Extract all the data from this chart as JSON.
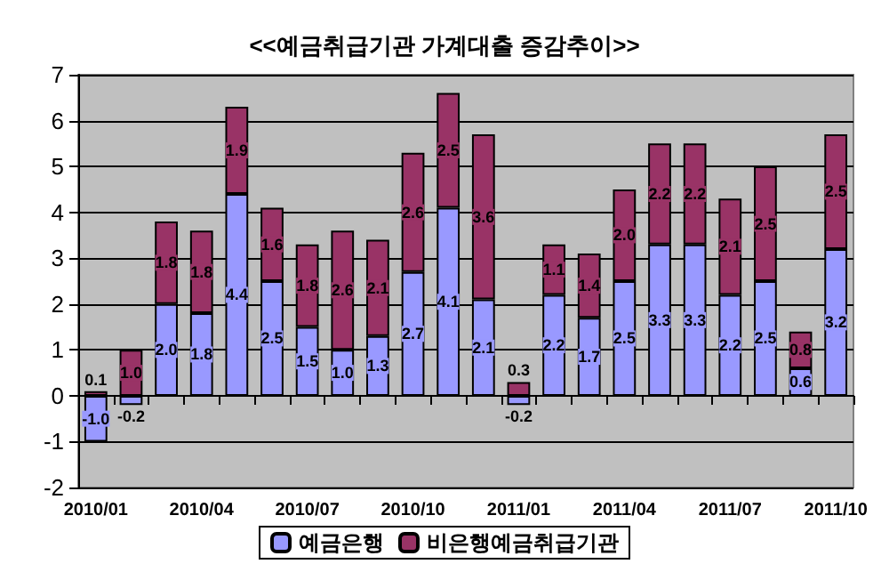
{
  "chart_data": {
    "type": "bar",
    "title": "<<예금취급기관 가계대출 증감추이>>",
    "stacked": true,
    "grid": "y",
    "legend": "bottom",
    "categories": [
      "2010/01",
      null,
      null,
      "2010/04",
      null,
      null,
      "2010/07",
      null,
      null,
      "2010/10",
      null,
      null,
      "2011/01",
      null,
      null,
      "2011/04",
      null,
      null,
      "2011/07",
      null,
      null,
      "2011/10"
    ],
    "series": [
      {
        "name": "예금은행",
        "color": "#9999ff",
        "values": [
          -1.0,
          -0.2,
          2.0,
          1.8,
          4.4,
          2.5,
          1.5,
          1.0,
          1.3,
          2.7,
          4.1,
          2.1,
          -0.2,
          2.2,
          1.7,
          2.5,
          3.3,
          3.3,
          2.2,
          2.5,
          0.6,
          3.2
        ],
        "value_labels": [
          "-1.0",
          "-0.2",
          "2.0",
          "1.8",
          "4.4",
          "2.5",
          "1.5",
          "1.0",
          "1.3",
          "2.7",
          "4.1",
          "2.1",
          "-0.2",
          "2.2",
          "1.7",
          "2.5",
          "3.3",
          "3.3",
          "2.2",
          "2.5",
          "0.6",
          "3.2"
        ]
      },
      {
        "name": "비은행예금취급기관",
        "color": "#993366",
        "values": [
          0.1,
          1.0,
          1.8,
          1.8,
          1.9,
          1.6,
          1.8,
          2.6,
          2.1,
          2.6,
          2.5,
          3.6,
          0.3,
          1.1,
          1.4,
          2.0,
          2.2,
          2.2,
          2.1,
          2.5,
          0.8,
          2.5
        ],
        "value_labels": [
          "0.1",
          "1.0",
          "1.8",
          "1.8",
          "1.9",
          "1.6",
          "1.8",
          "2.6",
          "2.1",
          "2.6",
          "2.5",
          "3.6",
          "0.3",
          "1.1",
          "1.4",
          "2.0",
          "2.2",
          "2.2",
          "2.1",
          "2.5",
          "0.8",
          "2.5"
        ]
      }
    ],
    "ylim": [
      -2,
      7
    ],
    "yticks": [
      -2,
      -1,
      0,
      1,
      2,
      3,
      4,
      5,
      6,
      7
    ]
  }
}
